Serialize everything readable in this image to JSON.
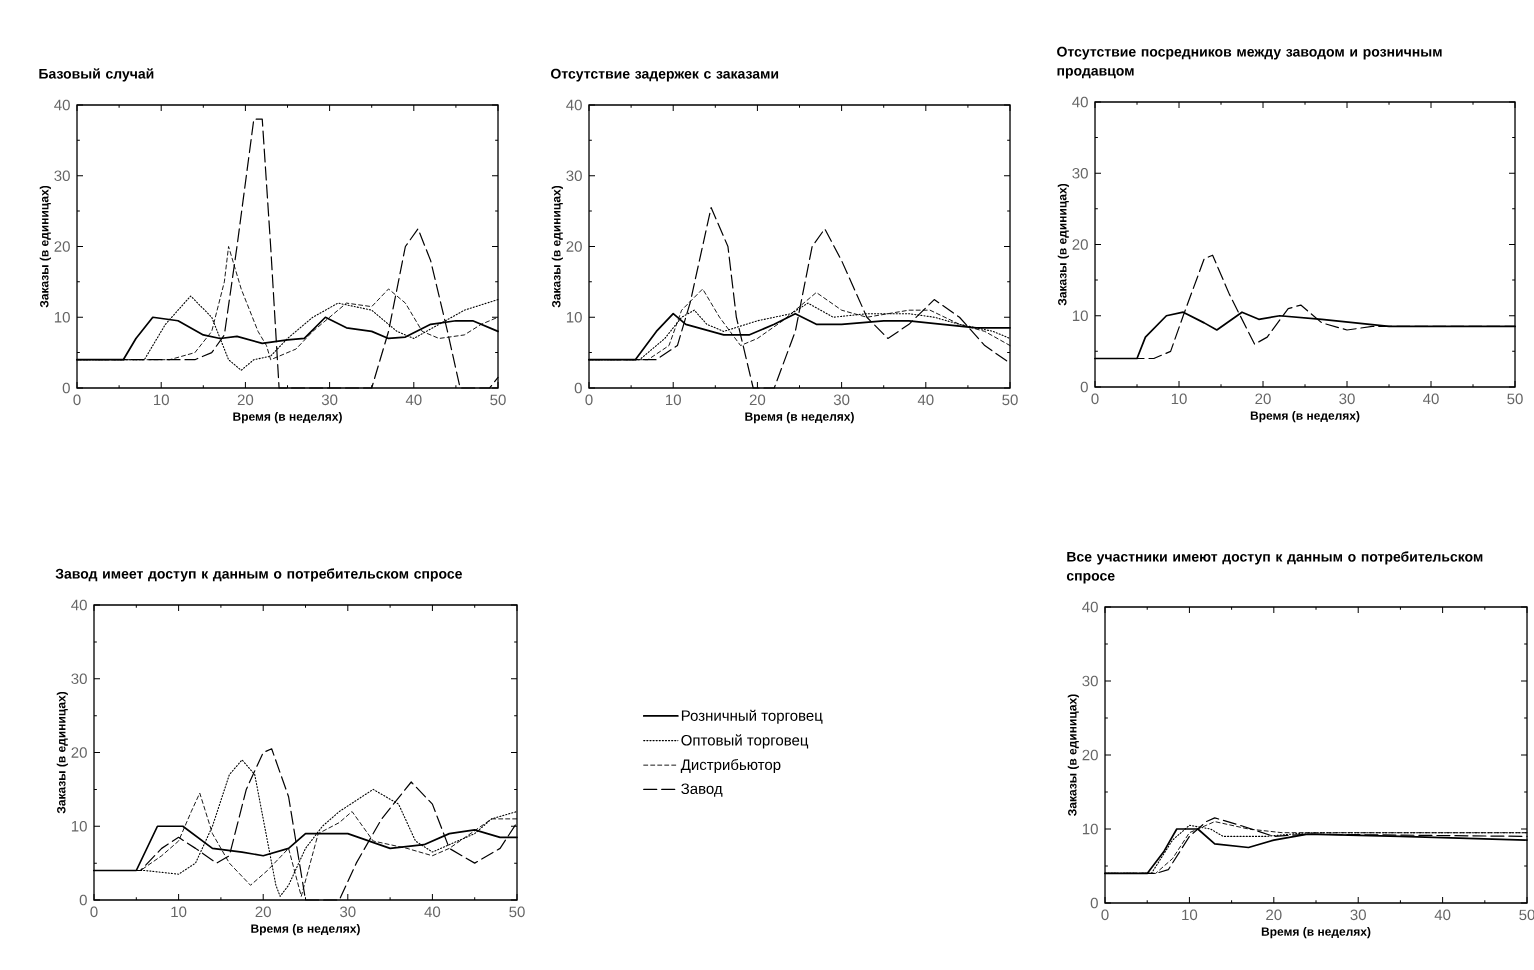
{
  "chart_data": [
    {
      "type": "line",
      "title": "Базовый случай",
      "xlabel": "Время (в неделях)",
      "ylabel": "Заказы (в единицах)",
      "xlim": [
        0,
        50
      ],
      "ylim": [
        0,
        40
      ],
      "xticks": [
        0,
        10,
        20,
        30,
        40,
        50
      ],
      "yticks": [
        0,
        10,
        20,
        30,
        40
      ],
      "series": [
        {
          "color": "#000000",
          "line_style": "solid",
          "x": [
            0,
            5.5,
            7,
            9,
            12,
            15,
            17,
            19,
            22,
            25,
            27,
            29.5,
            32,
            35,
            37,
            39,
            42,
            45,
            47,
            50
          ],
          "values": [
            4,
            4,
            7,
            10,
            9.5,
            7.5,
            7,
            7.3,
            6.3,
            6.8,
            7,
            10,
            8.5,
            8,
            7,
            7.2,
            9,
            9.5,
            9.5,
            8
          ]
        },
        {
          "color": "#000000",
          "line_style": "dotted",
          "x": [
            0,
            8,
            10.5,
            13.5,
            16,
            18,
            19.5,
            21,
            23,
            25,
            28,
            31,
            35,
            38,
            40,
            43,
            46,
            50
          ],
          "values": [
            4,
            4,
            9,
            13,
            10,
            4,
            2.5,
            4,
            4.5,
            7,
            10,
            12,
            11,
            8,
            7,
            9,
            11,
            12.5
          ]
        },
        {
          "color": "#000000",
          "line_style": "dashed",
          "x": [
            0,
            11,
            14,
            16,
            17.5,
            18,
            19.5,
            21.5,
            22.5,
            23,
            26,
            28,
            30,
            32,
            35,
            37,
            39,
            41,
            43,
            46,
            48,
            50
          ],
          "values": [
            4,
            4,
            5,
            8,
            15,
            20,
            14,
            8,
            6,
            4,
            5.5,
            8,
            10,
            12,
            11.5,
            14,
            12,
            8,
            7,
            7.5,
            9,
            10
          ]
        },
        {
          "color": "#000000",
          "line_style": "long dashed",
          "x": [
            0,
            14,
            16,
            17.5,
            19,
            21,
            22,
            23,
            24,
            35,
            37,
            39,
            40.5,
            42,
            44,
            45.5,
            49,
            50
          ],
          "values": [
            4,
            4,
            5,
            7.5,
            20,
            38,
            38,
            20,
            0,
            0,
            8,
            20,
            22.5,
            18,
            8,
            0,
            0,
            1.5
          ]
        }
      ]
    },
    {
      "type": "line",
      "title": "Отсутствие задержек с заказами",
      "xlabel": "Время (в неделях)",
      "ylabel": "Заказы (в единицах)",
      "xlim": [
        0,
        50
      ],
      "ylim": [
        0,
        40
      ],
      "xticks": [
        0,
        10,
        20,
        30,
        40,
        50
      ],
      "yticks": [
        0,
        10,
        20,
        30,
        40
      ],
      "series": [
        {
          "color": "#000000",
          "line_style": "solid",
          "x": [
            0,
            5.5,
            8,
            10,
            11.5,
            13,
            16,
            19,
            22,
            24.5,
            27,
            30,
            35,
            38,
            42,
            46,
            50
          ],
          "values": [
            4,
            4,
            8,
            10.5,
            9,
            8.5,
            7.5,
            7.5,
            9,
            10.5,
            9,
            9,
            9.5,
            9.5,
            9,
            8.5,
            8.5
          ]
        },
        {
          "color": "#000000",
          "line_style": "dotted",
          "x": [
            0,
            6,
            9,
            11,
            12.5,
            14,
            16,
            20,
            24,
            26,
            29,
            33,
            38,
            41,
            44,
            48,
            50
          ],
          "values": [
            4,
            4,
            7,
            10,
            11,
            9,
            8,
            9.5,
            10.5,
            12,
            10,
            10.5,
            10.5,
            10,
            9,
            8,
            7
          ]
        },
        {
          "color": "#000000",
          "line_style": "dashed",
          "x": [
            0,
            7,
            9.5,
            11,
            13.5,
            15.5,
            18,
            20,
            23,
            27,
            30,
            33,
            38,
            40.5,
            44,
            47,
            50
          ],
          "values": [
            4,
            4,
            6,
            11,
            14,
            10,
            6,
            7,
            9.5,
            13.5,
            11,
            10,
            11,
            11,
            9,
            8,
            6
          ]
        },
        {
          "color": "#000000",
          "line_style": "long dashed",
          "x": [
            0,
            8,
            10.5,
            12,
            14.5,
            16.5,
            17.5,
            19.5,
            22,
            24.5,
            26.5,
            28,
            30,
            33,
            35.5,
            38,
            41,
            44,
            47,
            50
          ],
          "values": [
            4,
            4,
            6,
            12,
            25.5,
            20,
            10,
            0,
            0,
            8,
            20,
            22.5,
            18,
            10,
            7,
            9,
            12.5,
            10,
            6,
            3.5
          ]
        }
      ]
    },
    {
      "type": "line",
      "title": "Отсутствие посредников между заводом и розничным продавцом",
      "xlabel": "Время (в неделях)",
      "ylabel": "Заказы (в единицах)",
      "xlim": [
        0,
        50
      ],
      "ylim": [
        0,
        40
      ],
      "xticks": [
        0,
        10,
        20,
        30,
        40,
        50
      ],
      "yticks": [
        0,
        10,
        20,
        30,
        40
      ],
      "series": [
        {
          "color": "#000000",
          "line_style": "solid",
          "x": [
            0,
            5,
            6,
            8.5,
            10.5,
            13,
            14.5,
            17.5,
            19.5,
            22,
            27,
            35,
            50
          ],
          "values": [
            4,
            4,
            7,
            10,
            10.5,
            9,
            8,
            10.5,
            9.5,
            10,
            9.5,
            8.5,
            8.5
          ]
        },
        {
          "color": "#000000",
          "line_style": "long dashed",
          "x": [
            0,
            7,
            9,
            10.5,
            13,
            14,
            16,
            19,
            20.5,
            23,
            24.5,
            27,
            30,
            33,
            50
          ],
          "values": [
            4,
            4,
            5,
            10,
            18,
            18.5,
            13,
            6,
            7,
            11,
            11.5,
            9,
            8,
            8.5,
            8.5
          ]
        }
      ]
    },
    {
      "type": "line",
      "title": "Завод имеет доступ к данным о потребительском спросе",
      "xlabel": "Время (в неделях)",
      "ylabel": "Заказы (в единицах)",
      "xlim": [
        0,
        50
      ],
      "ylim": [
        0,
        40
      ],
      "xticks": [
        0,
        10,
        20,
        30,
        40,
        50
      ],
      "yticks": [
        0,
        10,
        20,
        30,
        40
      ],
      "legend": "right",
      "series": [
        {
          "name": "Розничный торговец",
          "color": "#000000",
          "line_style": "solid",
          "x": [
            0,
            5,
            7.5,
            10.5,
            14,
            17.5,
            20,
            23,
            25,
            30,
            35,
            39,
            42,
            45,
            48,
            50
          ],
          "values": [
            4,
            4,
            10,
            10,
            7,
            6.5,
            6,
            7,
            9,
            9,
            7,
            7.5,
            9,
            9.5,
            8.5,
            8.5
          ]
        },
        {
          "name": "Оптовый торговец",
          "color": "#000000",
          "line_style": "dotted",
          "x": [
            0,
            6,
            10,
            12,
            14,
            16,
            17.5,
            19,
            20.5,
            21.5,
            22,
            23,
            25,
            27,
            29,
            33,
            36,
            38,
            40,
            42,
            45,
            47,
            50
          ],
          "values": [
            4,
            4,
            3.5,
            5,
            10,
            17,
            19,
            17,
            8,
            2,
            0.5,
            2,
            7,
            10,
            12,
            15,
            13,
            8,
            6.5,
            7.5,
            9,
            11,
            12
          ]
        },
        {
          "name": "Дистрибьютор",
          "color": "#000000",
          "line_style": "dashed",
          "x": [
            0,
            5.5,
            8,
            10,
            11.5,
            12.5,
            14,
            16,
            18.5,
            20.5,
            23,
            24.5,
            26.5,
            29,
            30.5,
            33,
            37,
            40,
            42,
            44.5,
            47,
            50
          ],
          "values": [
            4,
            4,
            6,
            8,
            12,
            14.5,
            9,
            5,
            2,
            4,
            7,
            0.5,
            9,
            10.5,
            12,
            8,
            7,
            6,
            7,
            9,
            11,
            11
          ]
        },
        {
          "name": "Завод",
          "color": "#000000",
          "line_style": "long dashed",
          "x": [
            0,
            5.5,
            8,
            10,
            12,
            14.5,
            16,
            18,
            20,
            21,
            23,
            25,
            29,
            31,
            34,
            37.5,
            40,
            42,
            45,
            48,
            50
          ],
          "values": [
            4,
            4,
            7,
            8.5,
            7,
            5,
            6,
            15,
            20,
            20.5,
            14,
            0,
            0,
            5,
            11,
            16,
            13,
            7,
            5,
            7,
            10.5
          ]
        }
      ]
    },
    {
      "type": "line",
      "title": "Все участники имеют доступ к данным о потребительском спросе",
      "xlabel": "Время (в неделях)",
      "ylabel": "Заказы (в единицах)",
      "xlim": [
        0,
        50
      ],
      "ylim": [
        0,
        40
      ],
      "xticks": [
        0,
        10,
        20,
        30,
        40,
        50
      ],
      "yticks": [
        0,
        10,
        20,
        30,
        40
      ],
      "series": [
        {
          "color": "#000000",
          "line_style": "solid",
          "x": [
            0,
            5,
            7,
            8.5,
            11,
            13,
            17,
            20,
            24,
            35,
            50
          ],
          "values": [
            4,
            4,
            7,
            10,
            10,
            8,
            7.5,
            8.5,
            9.3,
            9,
            8.5
          ]
        },
        {
          "color": "#000000",
          "line_style": "dotted",
          "x": [
            0,
            5.5,
            8,
            10,
            12.5,
            14,
            19,
            24,
            50
          ],
          "values": [
            4,
            4,
            8.5,
            10.5,
            10,
            9,
            9,
            9.5,
            9.5
          ]
        },
        {
          "color": "#000000",
          "line_style": "dashed",
          "x": [
            0,
            6,
            8,
            10,
            12,
            13,
            17,
            21,
            50
          ],
          "values": [
            4,
            4,
            6,
            9.5,
            10.5,
            11,
            10,
            9.5,
            9.5
          ]
        },
        {
          "color": "#000000",
          "line_style": "long dashed",
          "x": [
            0,
            6,
            7.5,
            10,
            12,
            13,
            16,
            20,
            24,
            50
          ],
          "values": [
            4,
            4,
            4.5,
            9,
            11,
            11.5,
            10.5,
            9,
            9.3,
            9
          ]
        }
      ]
    }
  ]
}
